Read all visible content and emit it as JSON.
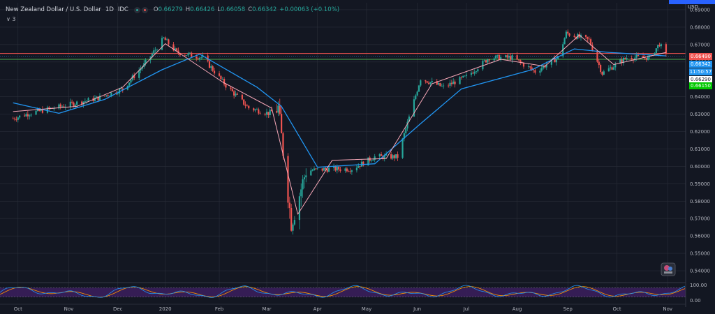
{
  "legend": {
    "symbol": "New Zealand Dollar / U.S. Dollar",
    "interval": "1D",
    "exchange": "IDC",
    "open_label": "O",
    "open": "0.66279",
    "high_label": "H",
    "high": "0.66426",
    "low_label": "L",
    "low": "0.66058",
    "close_label": "C",
    "close": "0.66342",
    "change": "+0.00063 (+0.10%)",
    "indicator_toggle": "∨ 3"
  },
  "price_axis_title": "USD",
  "price_tags": {
    "red_line": "0.66490",
    "last_price": "0.66342",
    "countdown": "11:50:57",
    "white_level": "0.66290",
    "green_line": "0.66150"
  },
  "colors": {
    "background": "#131722",
    "grid": "#2a2e39",
    "up_candle": "#26a69a",
    "down_candle": "#ef5350",
    "ma_fast": "#f7a8b8",
    "ma_slow": "#2196f3",
    "red_line": "#ef5350",
    "green_line": "#4caf50",
    "last_price": "#2196f3",
    "oscillator_bg": "#3c1f5e",
    "osc_k": "#2196f3",
    "osc_d": "#ff9800"
  },
  "chart_data": {
    "type": "candlestick",
    "title": "New Zealand Dollar / U.S. Dollar 1D IDC",
    "ylim": [
      0.534,
      0.694
    ],
    "yticks": [
      "0.69000",
      "0.68000",
      "0.67000",
      "0.66000",
      "0.65000",
      "0.64000",
      "0.63000",
      "0.62000",
      "0.61000",
      "0.60000",
      "0.59000",
      "0.58000",
      "0.57000",
      "0.56000",
      "0.55000",
      "0.54000"
    ],
    "xticks": [
      "Oct",
      "Nov",
      "Dec",
      "2020",
      "Feb",
      "Mar",
      "Apr",
      "May",
      "Jun",
      "Jul",
      "Aug",
      "Sep",
      "Oct",
      "Nov"
    ],
    "price_path": [
      [
        "2019-09-30",
        0.6275
      ],
      [
        "2019-10-10",
        0.6305
      ],
      [
        "2019-10-25",
        0.6335
      ],
      [
        "2019-11-08",
        0.6365
      ],
      [
        "2019-11-22",
        0.6395
      ],
      [
        "2019-12-06",
        0.6445
      ],
      [
        "2019-12-20",
        0.6595
      ],
      [
        "2019-12-31",
        0.6735
      ],
      [
        "2020-01-08",
        0.6655
      ],
      [
        "2020-01-24",
        0.6625
      ],
      [
        "2020-02-07",
        0.6465
      ],
      [
        "2020-02-21",
        0.6335
      ],
      [
        "2020-03-04",
        0.6305
      ],
      [
        "2020-03-10",
        0.6335
      ],
      [
        "2020-03-18",
        0.5675
      ],
      [
        "2020-03-20",
        0.5735
      ],
      [
        "2020-03-27",
        0.5975
      ],
      [
        "2020-04-10",
        0.5985
      ],
      [
        "2020-04-24",
        0.5985
      ],
      [
        "2020-05-08",
        0.6055
      ],
      [
        "2020-05-22",
        0.6055
      ],
      [
        "2020-06-05",
        0.6505
      ],
      [
        "2020-06-19",
        0.6455
      ],
      [
        "2020-07-03",
        0.6515
      ],
      [
        "2020-07-17",
        0.6625
      ],
      [
        "2020-07-31",
        0.6625
      ],
      [
        "2020-08-14",
        0.6545
      ],
      [
        "2020-08-28",
        0.6625
      ],
      [
        "2020-09-02",
        0.6765
      ],
      [
        "2020-09-16",
        0.6725
      ],
      [
        "2020-09-24",
        0.6535
      ],
      [
        "2020-10-09",
        0.6625
      ],
      [
        "2020-10-23",
        0.6625
      ],
      [
        "2020-10-29",
        0.6705
      ],
      [
        "2020-11-02",
        0.6634
      ]
    ],
    "ma_fast_path": [
      [
        "2019-09-30",
        0.6315
      ],
      [
        "2019-11-08",
        0.6345
      ],
      [
        "2019-12-06",
        0.6455
      ],
      [
        "2020-01-01",
        0.6705
      ],
      [
        "2020-02-05",
        0.6485
      ],
      [
        "2020-03-06",
        0.6335
      ],
      [
        "2020-03-22",
        0.5725
      ],
      [
        "2020-04-12",
        0.6035
      ],
      [
        "2020-05-15",
        0.6045
      ],
      [
        "2020-06-12",
        0.6475
      ],
      [
        "2020-07-24",
        0.6615
      ],
      [
        "2020-08-20",
        0.6575
      ],
      [
        "2020-09-10",
        0.6755
      ],
      [
        "2020-10-01",
        0.6585
      ],
      [
        "2020-11-02",
        0.6655
      ]
    ],
    "ma_slow_path": [
      [
        "2019-09-30",
        0.6365
      ],
      [
        "2019-10-28",
        0.6305
      ],
      [
        "2019-11-25",
        0.6385
      ],
      [
        "2019-12-30",
        0.6555
      ],
      [
        "2020-01-22",
        0.6645
      ],
      [
        "2020-02-26",
        0.6455
      ],
      [
        "2020-03-12",
        0.6345
      ],
      [
        "2020-04-03",
        0.5995
      ],
      [
        "2020-05-08",
        0.6015
      ],
      [
        "2020-06-05",
        0.6245
      ],
      [
        "2020-06-30",
        0.6445
      ],
      [
        "2020-08-12",
        0.6555
      ],
      [
        "2020-09-07",
        0.6675
      ],
      [
        "2020-09-28",
        0.6655
      ],
      [
        "2020-11-02",
        0.6635
      ]
    ],
    "horizontal_lines": [
      0.6649,
      0.6615
    ],
    "last_price": 0.66342,
    "oscillator": {
      "type": "stochastic",
      "ylim": [
        0,
        100
      ],
      "yticks": [
        "100.00",
        "0.00"
      ],
      "bands": [
        20,
        80
      ]
    }
  }
}
